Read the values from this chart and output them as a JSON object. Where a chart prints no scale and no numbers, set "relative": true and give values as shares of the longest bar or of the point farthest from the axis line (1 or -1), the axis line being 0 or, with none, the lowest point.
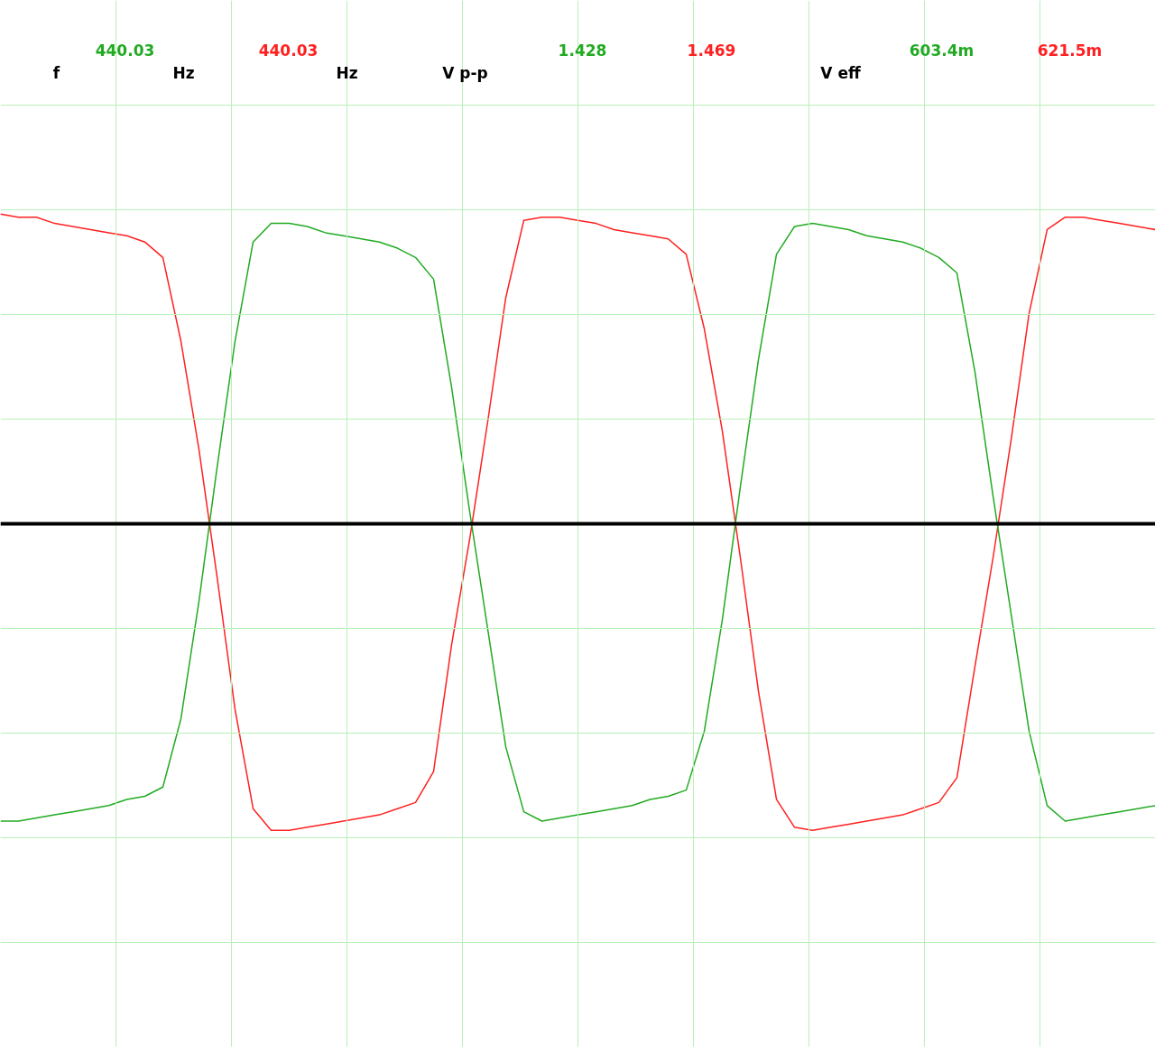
{
  "chart_data": {
    "type": "line",
    "relative": true,
    "grid": true,
    "line_style": "solid",
    "marker": "none",
    "annotations": [
      "f",
      "440.03",
      "Hz",
      "440.03",
      "Hz",
      "V p-p",
      "1.428",
      "1.469",
      "V eff",
      "603.4m",
      "621.5m"
    ],
    "categories": [
      null,
      null,
      null,
      null,
      null,
      null,
      null,
      null,
      null,
      null,
      null,
      null,
      null,
      null,
      null,
      null,
      null,
      null,
      null,
      null,
      null,
      null,
      null,
      null,
      null,
      null,
      null,
      null,
      null,
      null,
      null,
      null,
      null,
      null,
      null,
      null,
      null,
      null,
      null,
      null,
      null,
      null,
      null,
      null,
      null,
      null,
      null,
      null,
      null,
      null,
      null,
      null,
      null,
      null,
      null,
      null,
      null,
      null,
      null,
      null,
      null,
      null,
      null,
      null,
      null
    ],
    "series": [
      {
        "color": "#ff2020",
        "values": [
          1.0,
          0.99,
          0.99,
          0.97,
          0.96,
          0.95,
          0.94,
          0.93,
          0.91,
          0.86,
          0.59,
          0.24,
          -0.17,
          -0.6,
          -0.92,
          -0.99,
          -0.99,
          -0.98,
          -0.97,
          -0.96,
          -0.95,
          -0.94,
          -0.92,
          -0.9,
          -0.8,
          -0.39,
          -0.05,
          0.33,
          0.73,
          0.98,
          0.99,
          0.99,
          0.98,
          0.97,
          0.95,
          0.94,
          0.93,
          0.92,
          0.87,
          0.63,
          0.3,
          -0.11,
          -0.54,
          -0.89,
          -0.98,
          -0.99,
          -0.98,
          -0.97,
          -0.96,
          -0.95,
          -0.94,
          -0.92,
          -0.9,
          -0.82,
          -0.46,
          -0.11,
          0.27,
          0.68,
          0.95,
          0.99,
          0.99,
          0.98,
          0.97,
          0.96,
          0.95
        ]
      },
      {
        "color": "#22aa22",
        "values": [
          -0.96,
          -0.96,
          -0.95,
          -0.94,
          -0.93,
          -0.92,
          -0.91,
          -0.89,
          -0.88,
          -0.85,
          -0.63,
          -0.25,
          0.18,
          0.59,
          0.91,
          0.97,
          0.97,
          0.96,
          0.94,
          0.93,
          0.92,
          0.91,
          0.89,
          0.86,
          0.79,
          0.44,
          0.04,
          -0.34,
          -0.72,
          -0.93,
          -0.96,
          -0.95,
          -0.94,
          -0.93,
          -0.92,
          -0.91,
          -0.89,
          -0.88,
          -0.86,
          -0.67,
          -0.31,
          0.12,
          0.53,
          0.87,
          0.96,
          0.97,
          0.96,
          0.95,
          0.93,
          0.92,
          0.91,
          0.89,
          0.86,
          0.81,
          0.49,
          0.09,
          -0.29,
          -0.67,
          -0.91,
          -0.96,
          -0.95,
          -0.94,
          -0.93,
          -0.92,
          -0.91
        ]
      }
    ]
  }
}
